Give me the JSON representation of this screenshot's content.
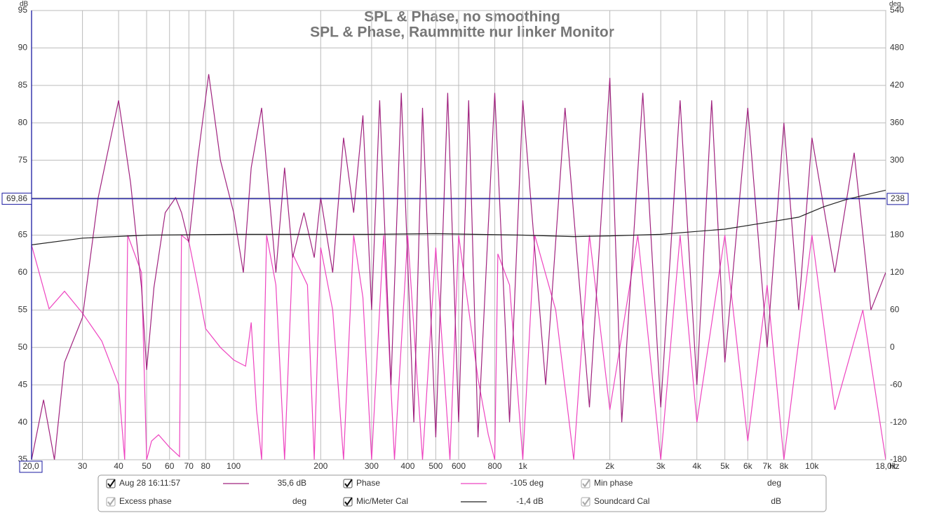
{
  "chart_data": {
    "type": "line",
    "title": "SPL & Phase, no smoothing",
    "subtitle": "SPL & Phase, Raummitte nur linker Monitor",
    "y_unit": "dB",
    "y2_unit": "deg",
    "x_unit": "Hz",
    "log_x": true,
    "grid": true,
    "xlim": [
      20,
      18000
    ],
    "ylim": [
      35,
      95
    ],
    "y2lim": [
      -180,
      540
    ],
    "xticks": [
      30,
      40,
      50,
      60,
      70,
      80,
      100,
      200,
      300,
      400,
      500,
      600,
      800,
      {
        "value": 1000,
        "label": "1k"
      },
      {
        "value": 2000,
        "label": "2k"
      },
      {
        "value": 3000,
        "label": "3k"
      },
      {
        "value": 4000,
        "label": "4k"
      },
      {
        "value": 5000,
        "label": "5k"
      },
      {
        "value": 6000,
        "label": "6k"
      },
      {
        "value": 7000,
        "label": "7k"
      },
      {
        "value": 8000,
        "label": "8k"
      },
      {
        "value": 10000,
        "label": "10k"
      },
      {
        "value": 18000,
        "label": "18,0k"
      }
    ],
    "yticks": [
      35,
      40,
      45,
      50,
      55,
      60,
      65,
      70,
      75,
      80,
      85,
      90,
      95
    ],
    "y2ticks": [
      -180,
      -120,
      -60,
      0,
      60,
      120,
      180,
      300,
      360,
      420,
      480,
      540
    ],
    "cursor": {
      "x": 20,
      "x_label": "20,0",
      "y": 69.86,
      "y_label": "69,86",
      "y2": 238,
      "y2_label": "238"
    },
    "series": [
      {
        "name": "Aug 28 16:11:57",
        "legend_value": "35,6 dB",
        "color": "#a0237f",
        "x": [
          20,
          22,
          24,
          26,
          30,
          34,
          40,
          44,
          48,
          50,
          53,
          58,
          63,
          66,
          70,
          75,
          82,
          90,
          100,
          108,
          115,
          125,
          140,
          150,
          160,
          175,
          190,
          200,
          220,
          240,
          260,
          280,
          300,
          320,
          350,
          380,
          420,
          450,
          500,
          550,
          600,
          650,
          700,
          800,
          900,
          1000,
          1200,
          1400,
          1700,
          2000,
          2200,
          2600,
          3000,
          3500,
          4000,
          4500,
          5000,
          6000,
          7000,
          8000,
          9000,
          10000,
          12000,
          14000,
          16000,
          18000
        ],
        "values": [
          35,
          43,
          35,
          48,
          54,
          70,
          83,
          72,
          58,
          47,
          58,
          68,
          70,
          68,
          64,
          75,
          86.5,
          75,
          68,
          60,
          74,
          82,
          60,
          74,
          62,
          68,
          62,
          70,
          60,
          78,
          68,
          81,
          55,
          83,
          45,
          84,
          40,
          82,
          38,
          84,
          40,
          83,
          38,
          84,
          40,
          83,
          45,
          82,
          42,
          86,
          40,
          84,
          42,
          83,
          45,
          83,
          48,
          82,
          50,
          80,
          55,
          78,
          60,
          76,
          55,
          60
        ]
      },
      {
        "name": "Phase",
        "legend_value": "-105 deg",
        "color": "#ee44c0",
        "axis": "y2",
        "x": [
          20,
          23,
          26,
          30,
          35,
          40,
          42,
          43,
          48,
          50,
          52,
          55,
          60,
          65,
          66,
          70,
          75,
          80,
          90,
          100,
          110,
          115,
          120,
          125,
          130,
          140,
          150,
          160,
          180,
          190,
          200,
          220,
          240,
          260,
          280,
          300,
          330,
          360,
          400,
          450,
          500,
          560,
          600,
          700,
          760,
          800,
          820,
          900,
          1000,
          1100,
          1300,
          1500,
          1700,
          2000,
          2500,
          3000,
          3500,
          4000,
          5000,
          6000,
          7000,
          8000,
          10000,
          12000,
          15000,
          18000
        ],
        "values": [
          164,
          62,
          90,
          55,
          10,
          -60,
          -180,
          180,
          120,
          -180,
          -150,
          -140,
          -160,
          -175,
          180,
          170,
          100,
          30,
          0,
          -20,
          -30,
          40,
          -100,
          -180,
          180,
          100,
          -180,
          150,
          100,
          -180,
          160,
          60,
          -180,
          180,
          80,
          -180,
          180,
          -180,
          180,
          -180,
          160,
          -180,
          180,
          -50,
          -140,
          -180,
          150,
          100,
          -180,
          180,
          60,
          -180,
          180,
          -100,
          180,
          -180,
          180,
          -120,
          180,
          -150,
          100,
          -180,
          180,
          -100,
          60,
          -180
        ]
      },
      {
        "name": "Mic/Meter Cal",
        "legend_value": "-1,4 dB",
        "color": "#222222",
        "x": [
          20,
          30,
          50,
          100,
          300,
          500,
          1000,
          1500,
          2000,
          3000,
          4000,
          5000,
          7000,
          9000,
          11000,
          13000,
          15000,
          18000
        ],
        "values": [
          63.7,
          64.6,
          65,
          65.1,
          65.1,
          65.2,
          65,
          64.8,
          64.9,
          65.1,
          65.5,
          65.8,
          66.7,
          67.4,
          68.8,
          69.7,
          70.3,
          71
        ]
      }
    ],
    "legend_inactive": [
      {
        "name": "Min phase",
        "unit": "deg"
      },
      {
        "name": "Excess phase",
        "unit": "deg"
      },
      {
        "name": "Soundcard Cal",
        "unit": "dB"
      }
    ]
  }
}
